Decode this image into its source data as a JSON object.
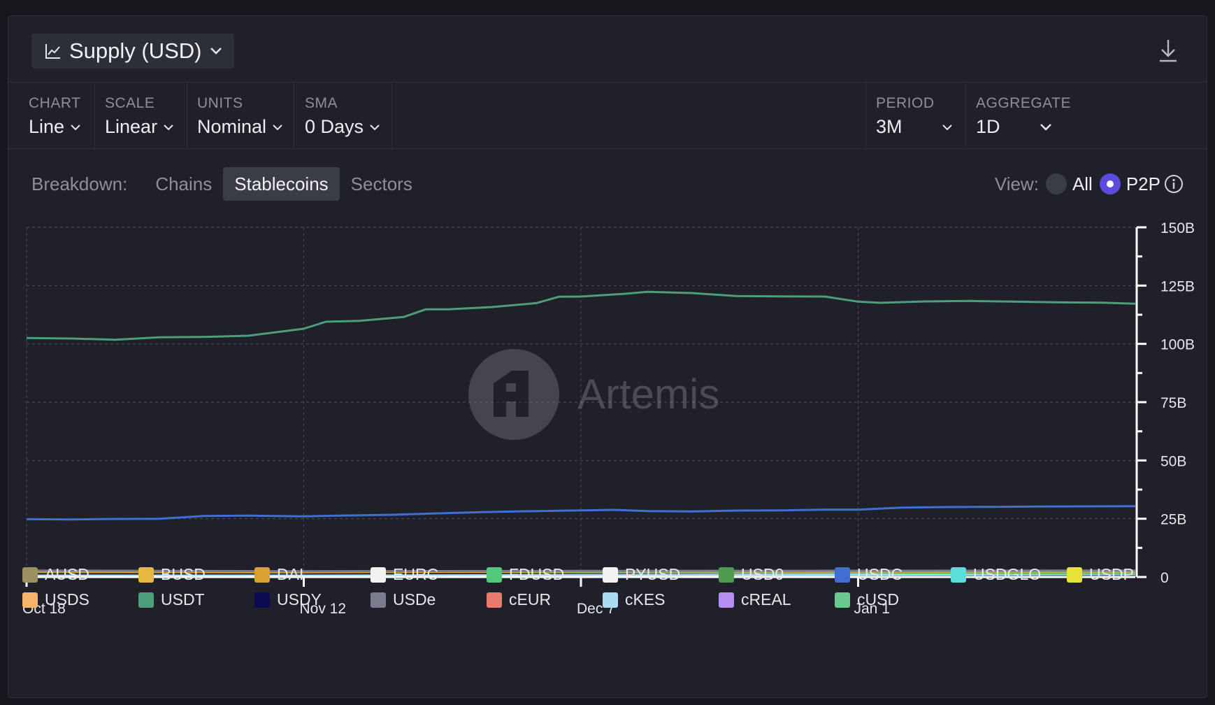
{
  "header": {
    "title": "Supply (USD)"
  },
  "controls": {
    "chart": {
      "label": "CHART",
      "value": "Line"
    },
    "scale": {
      "label": "SCALE",
      "value": "Linear"
    },
    "units": {
      "label": "UNITS",
      "value": "Nominal"
    },
    "sma": {
      "label": "SMA",
      "value": "0 Days"
    },
    "period": {
      "label": "PERIOD",
      "value": "3M"
    },
    "aggregate": {
      "label": "AGGREGATE",
      "value": "1D"
    }
  },
  "breakdown": {
    "label": "Breakdown:",
    "tabs": [
      "Chains",
      "Stablecoins",
      "Sectors"
    ],
    "active": "Stablecoins"
  },
  "view": {
    "label": "View:",
    "options": [
      "All",
      "P2P"
    ],
    "selected": "P2P"
  },
  "watermark": "Artemis",
  "colors": {
    "usdt": "#4e9e7c",
    "usdc": "#3f6fd0",
    "accent": "#5b4ce0"
  },
  "chart_data": {
    "type": "line",
    "x_ticks": [
      "Oct 18",
      "Nov 12",
      "Dec 7",
      "Jan 1"
    ],
    "y_ticks": [
      "0",
      "25B",
      "50B",
      "75B",
      "100B",
      "125B",
      "150B"
    ],
    "ylim": [
      0,
      150
    ],
    "y_unit": "B",
    "grid": true,
    "x_range": [
      "Oct 18",
      "Jan 26"
    ],
    "series": [
      {
        "name": "USDT",
        "color": "#4e9e7c",
        "x": [
          "Oct 18",
          "Oct 22",
          "Oct 26",
          "Oct 30",
          "Nov 3",
          "Nov 7",
          "Nov 12",
          "Nov 14",
          "Nov 17",
          "Nov 21",
          "Nov 23",
          "Nov 25",
          "Nov 29",
          "Dec 3",
          "Dec 5",
          "Dec 7",
          "Dec 11",
          "Dec 13",
          "Dec 17",
          "Dec 21",
          "Dec 25",
          "Dec 29",
          "Jan 1",
          "Jan 3",
          "Jan 7",
          "Jan 11",
          "Jan 15",
          "Jan 19",
          "Jan 23",
          "Jan 26"
        ],
        "values": [
          102.5,
          102.3,
          101.8,
          102.8,
          103.0,
          103.5,
          106.5,
          109.5,
          109.9,
          111.5,
          114.8,
          114.8,
          115.8,
          117.5,
          120.2,
          120.3,
          121.5,
          122.3,
          121.8,
          120.5,
          120.4,
          120.3,
          118.1,
          117.6,
          118.2,
          118.4,
          118.1,
          117.8,
          117.7,
          117.2
        ]
      },
      {
        "name": "USDC",
        "color": "#3f6fd0",
        "x": [
          "Oct 18",
          "Oct 22",
          "Oct 26",
          "Oct 30",
          "Nov 3",
          "Nov 7",
          "Nov 12",
          "Nov 16",
          "Nov 20",
          "Nov 24",
          "Nov 28",
          "Dec 2",
          "Dec 7",
          "Dec 10",
          "Dec 13",
          "Dec 17",
          "Dec 21",
          "Dec 25",
          "Dec 29",
          "Jan 1",
          "Jan 5",
          "Jan 9",
          "Jan 13",
          "Jan 17",
          "Jan 21",
          "Jan 26"
        ],
        "values": [
          24.8,
          24.7,
          24.9,
          25.0,
          26.2,
          26.3,
          26.0,
          26.4,
          26.7,
          27.3,
          27.8,
          28.2,
          28.6,
          28.8,
          28.3,
          28.1,
          28.5,
          28.6,
          28.9,
          28.9,
          29.8,
          30.0,
          30.1,
          30.2,
          30.3,
          30.4
        ]
      },
      {
        "name": "USDe",
        "color": "#7a7b8c",
        "x": [
          "Oct 18",
          "Nov 12",
          "Dec 7",
          "Jan 1",
          "Jan 26"
        ],
        "values": [
          2.8,
          2.5,
          2.6,
          2.7,
          2.8
        ]
      },
      {
        "name": "DAI",
        "color": "#d9a132",
        "x": [
          "Oct 18",
          "Nov 12",
          "Dec 7",
          "Jan 1",
          "Jan 26"
        ],
        "values": [
          2.2,
          2.0,
          2.4,
          2.3,
          2.3
        ]
      },
      {
        "name": "FDUSD",
        "color": "#52c97a",
        "x": [
          "Oct 18",
          "Nov 12",
          "Dec 7",
          "Jan 1",
          "Jan 26"
        ],
        "values": [
          2.4,
          2.3,
          2.0,
          1.8,
          1.5
        ]
      },
      {
        "name": "cKES",
        "color": "#a9dcf0",
        "x": [
          "Oct 18",
          "Nov 12",
          "Dec 7",
          "Jan 1",
          "Jan 26"
        ],
        "values": [
          0.6,
          0.6,
          0.8,
          1.0,
          1.2
        ]
      }
    ]
  },
  "legend": [
    {
      "name": "AUSD",
      "color": "#9a9060"
    },
    {
      "name": "BUSD",
      "color": "#e6b840"
    },
    {
      "name": "DAI",
      "color": "#d9a132"
    },
    {
      "name": "EURC",
      "color": "#f2f2f0"
    },
    {
      "name": "FDUSD",
      "color": "#52c97a"
    },
    {
      "name": "PYUSD",
      "color": "#f2f2f2"
    },
    {
      "name": "USD0",
      "color": "#4f9a4f"
    },
    {
      "name": "USDC",
      "color": "#3f6fd0"
    },
    {
      "name": "USDGLO",
      "color": "#5ddcdc"
    },
    {
      "name": "USDP",
      "color": "#e6e23a"
    },
    {
      "name": "USDS",
      "color": "#f4b56a"
    },
    {
      "name": "USDT",
      "color": "#4e9e7c"
    },
    {
      "name": "USDY",
      "color": "#0b0b52"
    },
    {
      "name": "USDe",
      "color": "#7a7b8c"
    },
    {
      "name": "cEUR",
      "color": "#e87b6e"
    },
    {
      "name": "cKES",
      "color": "#a9dcf0"
    },
    {
      "name": "cREAL",
      "color": "#b48ef0"
    },
    {
      "name": "cUSD",
      "color": "#6cc98e"
    }
  ]
}
